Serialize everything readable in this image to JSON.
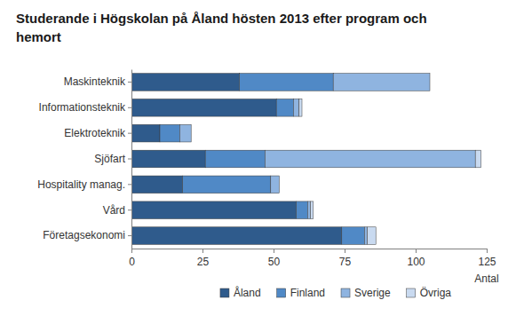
{
  "chart_data": {
    "type": "bar",
    "orientation": "horizontal",
    "stacked": true,
    "title": "Studerande i Högskolan på Åland hösten 2013 efter program och hemort",
    "xlabel": "Antal",
    "categories": [
      "Maskinteknik",
      "Informationsteknik",
      "Elektroteknik",
      "Sjöfart",
      "Hospitality manag.",
      "Vård",
      "Företagsekonomi"
    ],
    "series": [
      {
        "name": "Åland",
        "color": "#2f5b8c",
        "values": [
          38,
          51,
          10,
          26,
          18,
          58,
          74
        ]
      },
      {
        "name": "Finland",
        "color": "#5089c6",
        "values": [
          33,
          6,
          7,
          21,
          31,
          4,
          8
        ]
      },
      {
        "name": "Sverige",
        "color": "#8fb4e0",
        "values": [
          34,
          2,
          4,
          74,
          3,
          1,
          1
        ]
      },
      {
        "name": "Övriga",
        "color": "#c9daf0",
        "values": [
          0,
          1,
          0,
          2,
          0,
          1,
          3
        ]
      }
    ],
    "xlim": [
      0,
      125
    ],
    "xticks": [
      0,
      25,
      50,
      75,
      100,
      125
    ],
    "grid": false,
    "legend": "bottom"
  }
}
